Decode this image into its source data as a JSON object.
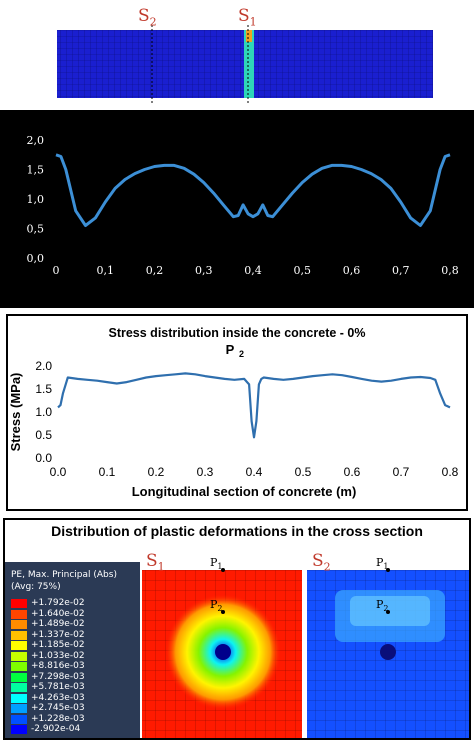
{
  "beam": {
    "labels": [
      {
        "main": "S",
        "sub": "2",
        "x": 0.26
      },
      {
        "main": "S",
        "sub": "1",
        "x": 0.52
      }
    ]
  },
  "chart_data": [
    {
      "type": "line",
      "title": "",
      "xlabel": "",
      "ylabel": "",
      "xlim": [
        0,
        0.8
      ],
      "ylim": [
        0,
        2.0
      ],
      "x_ticks": [
        "0",
        "0,1",
        "0,2",
        "0,3",
        "0,4",
        "0,5",
        "0,6",
        "0,7",
        "0,8"
      ],
      "y_ticks": [
        "0,0",
        "0,5",
        "1,0",
        "1,5",
        "2,0"
      ],
      "series": [
        {
          "color": "#3c8fd6",
          "x": [
            0.0,
            0.01,
            0.02,
            0.04,
            0.06,
            0.08,
            0.1,
            0.12,
            0.14,
            0.16,
            0.18,
            0.2,
            0.22,
            0.24,
            0.26,
            0.28,
            0.3,
            0.32,
            0.34,
            0.36,
            0.37,
            0.38,
            0.39,
            0.4,
            0.41,
            0.42,
            0.43,
            0.44,
            0.46,
            0.48,
            0.5,
            0.52,
            0.54,
            0.56,
            0.58,
            0.6,
            0.62,
            0.64,
            0.66,
            0.68,
            0.7,
            0.72,
            0.74,
            0.76,
            0.78,
            0.79,
            0.8
          ],
          "y": [
            1.75,
            1.72,
            1.5,
            0.8,
            0.55,
            0.68,
            0.95,
            1.18,
            1.33,
            1.43,
            1.5,
            1.55,
            1.57,
            1.57,
            1.52,
            1.42,
            1.28,
            1.1,
            0.9,
            0.7,
            0.72,
            0.9,
            0.75,
            0.7,
            0.75,
            0.9,
            0.72,
            0.7,
            0.9,
            1.1,
            1.28,
            1.42,
            1.52,
            1.57,
            1.57,
            1.55,
            1.5,
            1.43,
            1.33,
            1.18,
            0.95,
            0.68,
            0.55,
            0.8,
            1.5,
            1.72,
            1.75
          ]
        }
      ]
    },
    {
      "type": "line",
      "title": "Stress distribution inside the concrete - 0%",
      "subtitle_main": "P",
      "subtitle_sub": "2",
      "xlabel": "Longitudinal section of concrete (m)",
      "ylabel": "Stress (MPa)",
      "xlim": [
        0,
        0.8
      ],
      "ylim": [
        0,
        2.0
      ],
      "x_ticks": [
        "0.0",
        "0.1",
        "0.2",
        "0.3",
        "0.4",
        "0.5",
        "0.6",
        "0.7",
        "0.8"
      ],
      "y_ticks": [
        "0.0",
        "0.5",
        "1.0",
        "1.5",
        "2.0"
      ],
      "series": [
        {
          "color": "#2f6fae",
          "x": [
            0.0,
            0.005,
            0.01,
            0.02,
            0.04,
            0.06,
            0.08,
            0.1,
            0.12,
            0.14,
            0.16,
            0.18,
            0.2,
            0.22,
            0.24,
            0.26,
            0.28,
            0.3,
            0.32,
            0.34,
            0.36,
            0.38,
            0.39,
            0.395,
            0.4,
            0.405,
            0.41,
            0.415,
            0.42,
            0.44,
            0.46,
            0.48,
            0.5,
            0.52,
            0.54,
            0.56,
            0.58,
            0.6,
            0.62,
            0.64,
            0.66,
            0.68,
            0.7,
            0.72,
            0.74,
            0.76,
            0.77,
            0.78,
            0.79,
            0.8
          ],
          "y": [
            1.1,
            1.15,
            1.4,
            1.75,
            1.72,
            1.7,
            1.68,
            1.65,
            1.62,
            1.65,
            1.7,
            1.75,
            1.78,
            1.8,
            1.82,
            1.84,
            1.82,
            1.78,
            1.75,
            1.72,
            1.7,
            1.72,
            1.6,
            0.8,
            0.45,
            0.8,
            1.6,
            1.72,
            1.75,
            1.72,
            1.7,
            1.72,
            1.75,
            1.78,
            1.8,
            1.82,
            1.8,
            1.76,
            1.72,
            1.68,
            1.66,
            1.68,
            1.72,
            1.75,
            1.76,
            1.74,
            1.7,
            1.4,
            1.15,
            1.1
          ]
        }
      ]
    }
  ],
  "plastic": {
    "title": "Distribution of plastic deformations in the cross section",
    "legend_title_lines": [
      "PE, Max. Principal (Abs)",
      "(Avg: 75%)"
    ],
    "legend": [
      {
        "value": "+1.792e-02",
        "color": "#ff0000"
      },
      {
        "value": "+1.640e-02",
        "color": "#ff4500"
      },
      {
        "value": "+1.489e-02",
        "color": "#ff8c00"
      },
      {
        "value": "+1.337e-02",
        "color": "#ffc000"
      },
      {
        "value": "+1.185e-02",
        "color": "#ffff00"
      },
      {
        "value": "+1.033e-02",
        "color": "#c6ff00"
      },
      {
        "value": "+8.816e-03",
        "color": "#7fff00"
      },
      {
        "value": "+7.298e-03",
        "color": "#00ff40"
      },
      {
        "value": "+5.781e-03",
        "color": "#00ffa0"
      },
      {
        "value": "+4.263e-03",
        "color": "#00ffff"
      },
      {
        "value": "+2.745e-03",
        "color": "#00a0ff"
      },
      {
        "value": "+1.228e-03",
        "color": "#0050ff"
      },
      {
        "value": "-2.902e-04",
        "color": "#0000ff"
      }
    ],
    "sections": [
      {
        "main": "S",
        "sub": "1"
      },
      {
        "main": "S",
        "sub": "2"
      }
    ],
    "points": [
      {
        "main": "P",
        "sub": "1"
      },
      {
        "main": "P",
        "sub": "2"
      }
    ]
  }
}
